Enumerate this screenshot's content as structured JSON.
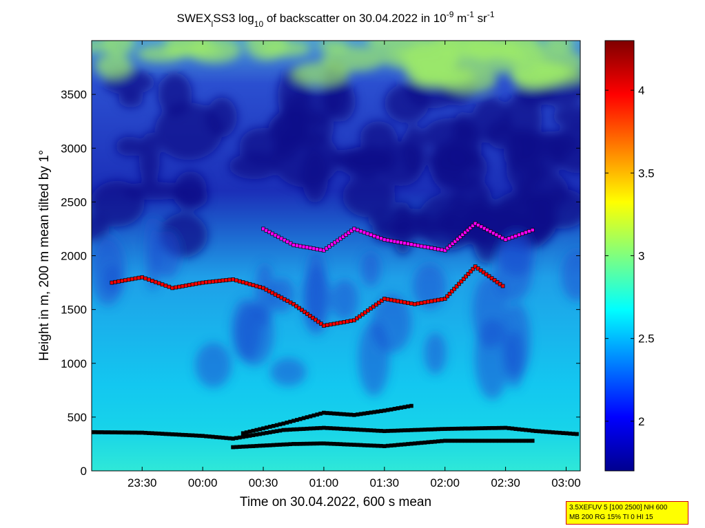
{
  "title": {
    "prefix": "SWEX",
    "sub1": "l",
    "mid": "SS3 log",
    "sub2": "10",
    "rest": " of backscatter on 30.04.2022 in 10",
    "sup1": "-9",
    "unit1": " m",
    "sup2": "-1",
    "unit2": " sr",
    "sup3": "-1"
  },
  "footer": {
    "line1": "3.5XEFUV 5 [100 2500] NH 600",
    "line2": "MB 200 RG 15% TI 0 HI 15"
  },
  "chart_data": {
    "type": "heatmap",
    "xlabel": "Time on 30.04.2022, 600 s mean",
    "ylabel": "Height in m, 200 m mean tilted by 1°",
    "xlim": [
      "23:05",
      "03:07"
    ],
    "ylim": [
      0,
      4000
    ],
    "x_ticks": [
      "23:30",
      "00:00",
      "00:30",
      "01:00",
      "01:30",
      "02:00",
      "02:30",
      "03:00"
    ],
    "y_ticks": [
      0,
      500,
      1000,
      1500,
      2000,
      2500,
      3000,
      3500
    ],
    "colorbar": {
      "range": [
        1.7,
        4.3
      ],
      "ticks": [
        "2",
        "2.5",
        "3",
        "3.5",
        "4"
      ],
      "colormap": "jet"
    },
    "layers": [
      {
        "name": "mixing-layer-base",
        "color": "#000000",
        "points": [
          [
            "23:05",
            360
          ],
          [
            "23:30",
            355
          ],
          [
            "00:00",
            325
          ],
          [
            "00:15",
            300
          ],
          [
            "00:40",
            380
          ],
          [
            "01:00",
            400
          ],
          [
            "01:30",
            370
          ],
          [
            "02:00",
            390
          ],
          [
            "02:30",
            400
          ],
          [
            "02:45",
            370
          ],
          [
            "03:07",
            340
          ]
        ]
      },
      {
        "name": "residual-layer",
        "color": "#000000",
        "points": [
          [
            "00:15",
            220
          ],
          [
            "00:45",
            250
          ],
          [
            "01:00",
            255
          ],
          [
            "01:30",
            230
          ],
          [
            "02:00",
            280
          ],
          [
            "02:30",
            280
          ],
          [
            "02:45",
            280
          ]
        ]
      },
      {
        "name": "rising-layer",
        "color": "#000000",
        "points": [
          [
            "00:20",
            350
          ],
          [
            "00:40",
            440
          ],
          [
            "01:00",
            540
          ],
          [
            "01:15",
            520
          ],
          [
            "01:30",
            560
          ],
          [
            "01:45",
            610
          ]
        ]
      },
      {
        "name": "cloud-layer-red",
        "color": "#ff0000",
        "points": [
          [
            "23:15",
            1750
          ],
          [
            "23:30",
            1800
          ],
          [
            "23:45",
            1700
          ],
          [
            "00:00",
            1750
          ],
          [
            "00:15",
            1780
          ],
          [
            "00:30",
            1700
          ],
          [
            "00:45",
            1550
          ],
          [
            "01:00",
            1350
          ],
          [
            "01:15",
            1400
          ],
          [
            "01:30",
            1600
          ],
          [
            "01:45",
            1550
          ],
          [
            "02:00",
            1600
          ],
          [
            "02:15",
            1900
          ],
          [
            "02:30",
            1700
          ]
        ]
      },
      {
        "name": "upper-layer-magenta",
        "color": "#ff00ff",
        "points": [
          [
            "00:30",
            2250
          ],
          [
            "00:45",
            2100
          ],
          [
            "01:00",
            2050
          ],
          [
            "01:15",
            2250
          ],
          [
            "01:30",
            2150
          ],
          [
            "01:45",
            2100
          ],
          [
            "02:00",
            2050
          ],
          [
            "02:15",
            2300
          ],
          [
            "02:30",
            2150
          ],
          [
            "02:45",
            2250
          ]
        ]
      }
    ]
  }
}
